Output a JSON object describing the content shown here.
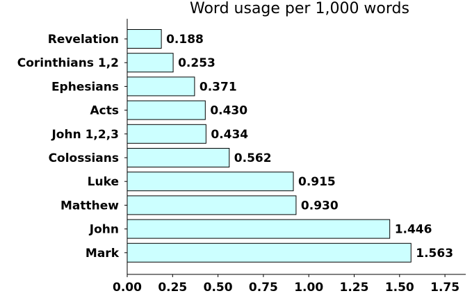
{
  "chart_data": {
    "type": "bar",
    "orientation": "horizontal",
    "title": "Word usage per 1,000 words",
    "xlabel": "",
    "ylabel": "",
    "categories": [
      "Revelation",
      "Corinthians 1,2",
      "Ephesians",
      "Acts",
      "John 1,2,3",
      "Colossians",
      "Luke",
      "Matthew",
      "John",
      "Mark"
    ],
    "values": [
      0.188,
      0.253,
      0.371,
      0.43,
      0.434,
      0.562,
      0.915,
      0.93,
      1.446,
      1.563
    ],
    "value_labels": [
      "0.188",
      "0.253",
      "0.371",
      "0.430",
      "0.434",
      "0.562",
      "0.915",
      "0.930",
      "1.446",
      "1.563"
    ],
    "xlim": [
      0,
      1.87
    ],
    "xticks": [
      0,
      0.25,
      0.5,
      0.75,
      1,
      1.25,
      1.5,
      1.75
    ],
    "xtick_labels": [
      "0.00",
      "0.25",
      "0.50",
      "0.75",
      "1.00",
      "1.25",
      "1.50",
      "1.75"
    ],
    "grid": false,
    "bar_color": "#ccffff",
    "edge_color": "#000000"
  }
}
